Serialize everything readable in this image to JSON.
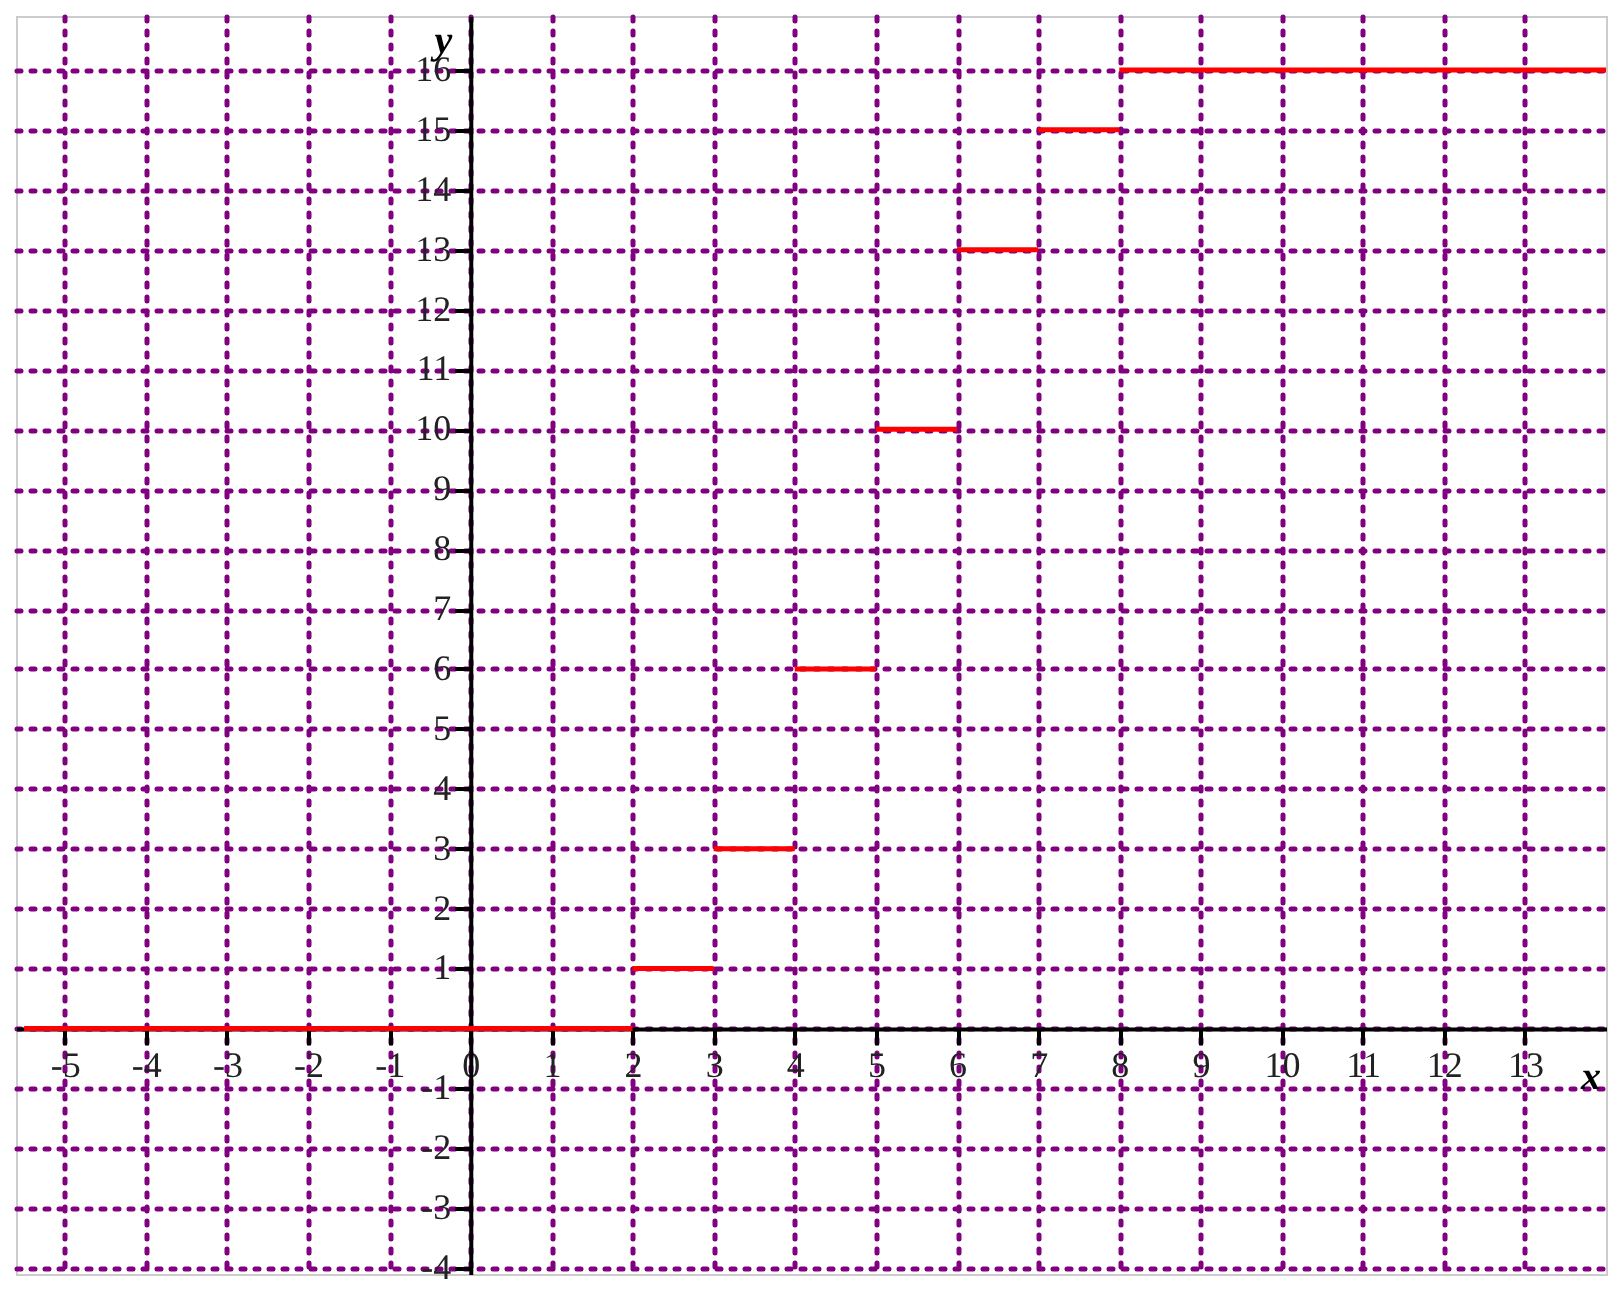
{
  "chart_data": {
    "type": "step",
    "xlabel": "x",
    "ylabel": "y",
    "x": [
      -5.5,
      2,
      3,
      4,
      5,
      6,
      7,
      8,
      14
    ],
    "values": [
      0,
      1,
      3,
      6,
      10,
      13,
      15,
      16,
      16
    ],
    "color": "#ff0000",
    "xlim": [
      -5.6,
      14
    ],
    "ylim": [
      -4.1,
      16.9
    ],
    "xticks": [
      -5,
      -4,
      -3,
      -2,
      -1,
      0,
      1,
      2,
      3,
      4,
      5,
      6,
      7,
      8,
      9,
      10,
      11,
      12,
      13
    ],
    "yticks": [
      -4,
      -3,
      -2,
      -1,
      {
        "value": 0,
        "label": null
      },
      1,
      2,
      3,
      4,
      5,
      6,
      7,
      8,
      9,
      10,
      11,
      12,
      13,
      14,
      15,
      16
    ],
    "grid": true
  }
}
